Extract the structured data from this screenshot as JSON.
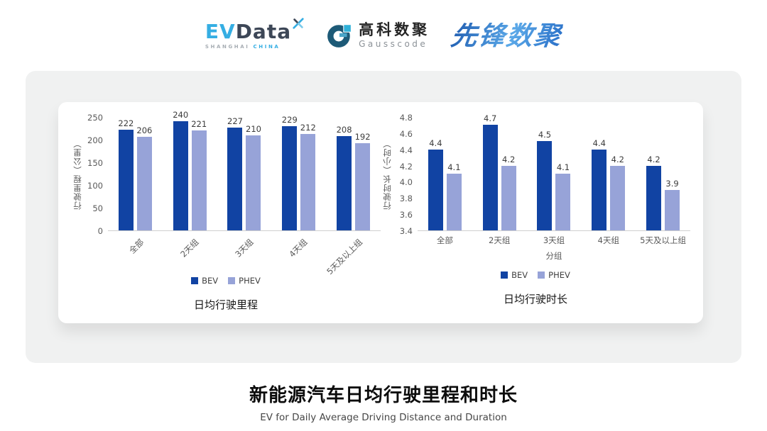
{
  "header": {
    "evdata": {
      "ev": "EV",
      "data": "Data",
      "tagline_left": "SHANGHAI",
      "tagline_right": "CHINA"
    },
    "gausscode": {
      "name_cn": "高科数聚",
      "name_en": "Gausscode"
    },
    "pioneer": {
      "name": "先锋数聚"
    }
  },
  "colors": {
    "bev": "#1143a3",
    "phev": "#97a3d8"
  },
  "chart_data": [
    {
      "type": "bar",
      "title": "日均行驶里程",
      "ylabel": "行驶里程（公里）",
      "xlabel": "",
      "categories": [
        "全部",
        "2天组",
        "3天组",
        "4天组",
        "5天及以上组"
      ],
      "series": [
        {
          "name": "BEV",
          "values": [
            222,
            240,
            227,
            229,
            208
          ]
        },
        {
          "name": "PHEV",
          "values": [
            206,
            221,
            210,
            212,
            192
          ]
        }
      ],
      "ylim": [
        0,
        250
      ],
      "yticks": [
        0,
        50,
        100,
        150,
        200,
        250
      ],
      "tick_decimals": 0,
      "value_decimals": 0,
      "category_rotation": -45,
      "legend_position": "bottom",
      "grid": false
    },
    {
      "type": "bar",
      "title": "日均行驶时长",
      "ylabel": "行驶时长（小时）",
      "xlabel": "分组",
      "categories": [
        "全部",
        "2天组",
        "3天组",
        "4天组",
        "5天及以上组"
      ],
      "series": [
        {
          "name": "BEV",
          "values": [
            4.4,
            4.7,
            4.5,
            4.4,
            4.2
          ]
        },
        {
          "name": "PHEV",
          "values": [
            4.1,
            4.2,
            4.1,
            4.2,
            3.9
          ]
        }
      ],
      "ylim": [
        3.4,
        4.8
      ],
      "yticks": [
        3.4,
        3.6,
        3.8,
        4.0,
        4.2,
        4.4,
        4.6,
        4.8
      ],
      "tick_decimals": 1,
      "value_decimals": 1,
      "category_rotation": 0,
      "legend_position": "bottom",
      "grid": false
    }
  ],
  "footer": {
    "title": "新能源汽车日均行驶里程和时长",
    "subtitle": "EV for Daily Average Driving Distance and Duration"
  }
}
